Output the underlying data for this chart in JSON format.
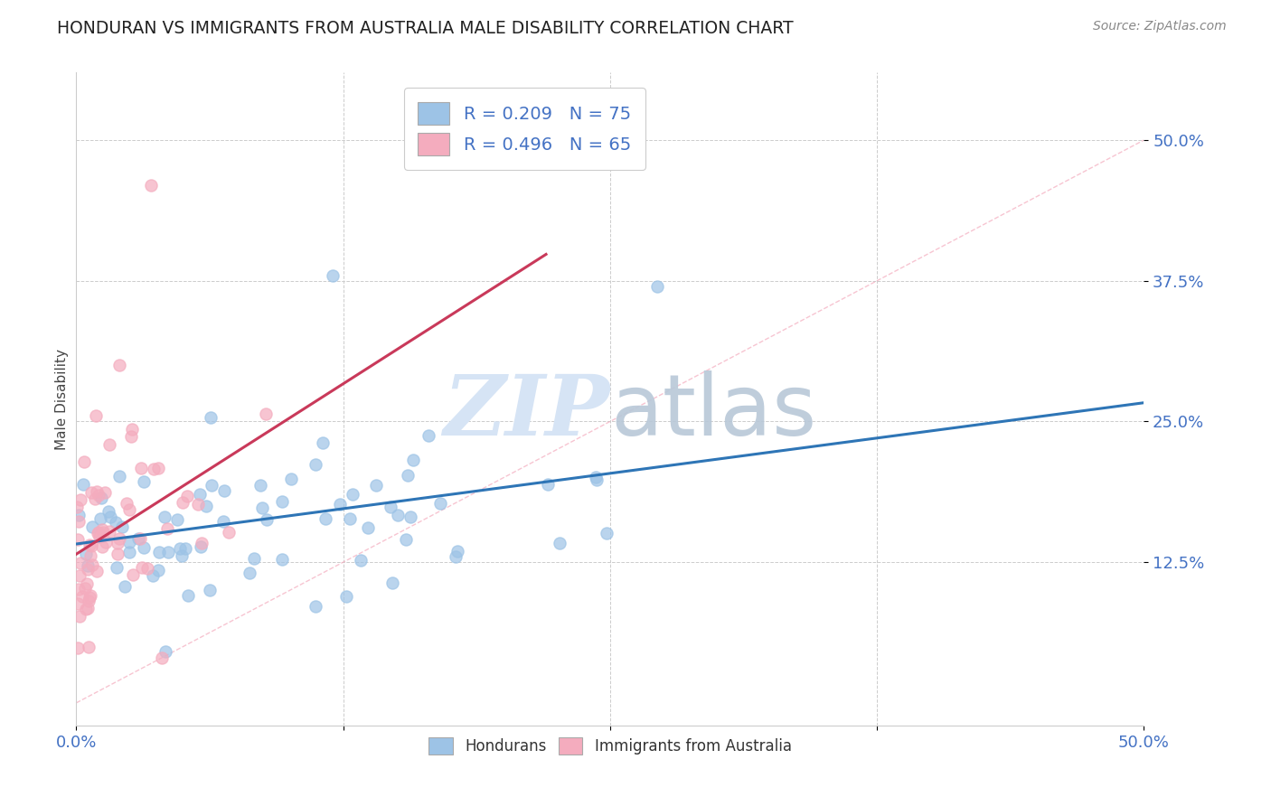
{
  "title": "HONDURAN VS IMMIGRANTS FROM AUSTRALIA MALE DISABILITY CORRELATION CHART",
  "source": "Source: ZipAtlas.com",
  "ylabel": "Male Disability",
  "ytick_values": [
    0.125,
    0.25,
    0.375,
    0.5
  ],
  "xlim": [
    0.0,
    0.5
  ],
  "ylim": [
    -0.02,
    0.56
  ],
  "legend_label1": "Hondurans",
  "legend_label2": "Immigrants from Australia",
  "r_honduran": 0.209,
  "n_honduran": 75,
  "r_australia": 0.496,
  "n_australia": 65,
  "color_honduran": "#9DC3E6",
  "color_australia": "#F4ACBE",
  "trendline_honduran_color": "#2E75B6",
  "trendline_australia_color": "#C9395A",
  "diagonal_color": "#F4ACBE",
  "background_color": "#FFFFFF",
  "watermark_color": "#D6E4F5",
  "seed": 12345
}
